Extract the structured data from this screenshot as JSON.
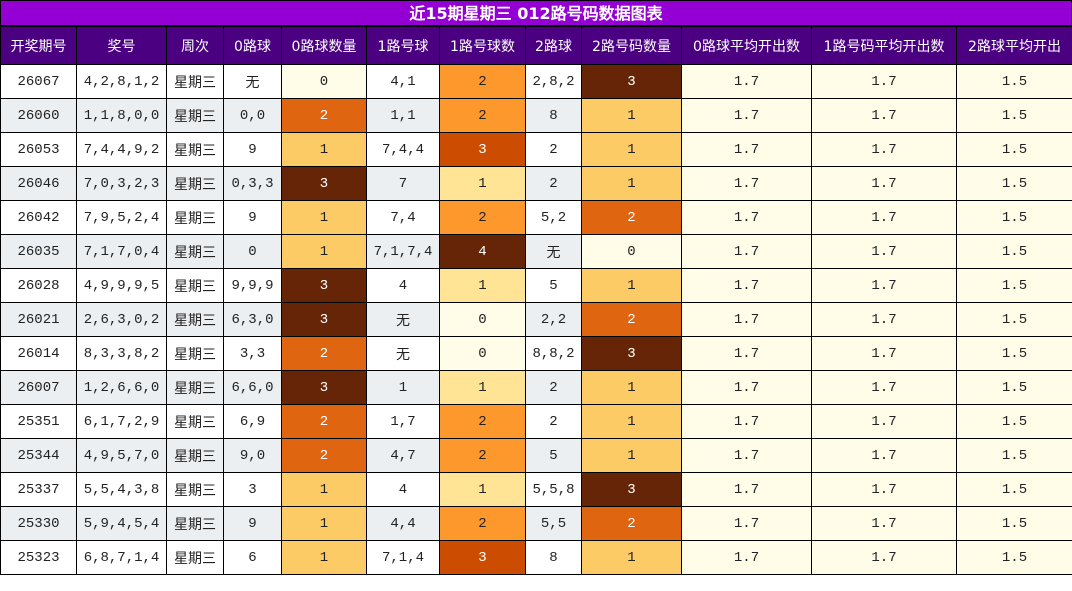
{
  "title": "近15期星期三 012路号码数据图表",
  "headers": [
    "开奖期号",
    "奖号",
    "周次",
    "0路球",
    "0路球数量",
    "1路号球",
    "1路号球数",
    "2路球",
    "2路号码数量",
    "0路球平均开出数",
    "1路号码平均开出数",
    "2路球平均开出"
  ],
  "colors": {
    "title_bg": "#9400d3",
    "header_bg": "#4b0082",
    "row_alt_bg": "#eceff2",
    "avg_bg": "#fffde8",
    "count_0": "#fffde8",
    "count_1": "#fdcb65",
    "count_2": "#e06510",
    "count_3": "#662506",
    "count_4": "#662506"
  },
  "rows": [
    {
      "issue": "26067",
      "numbers": "4,2,8,1,2",
      "weekday": "星期三",
      "r0": "无",
      "r0_count": "0",
      "r1": "4,1",
      "r1_count": "2",
      "r2": "2,8,2",
      "r2_count": "3",
      "avg0": "1.7",
      "avg1": "1.7",
      "avg2": "1.5"
    },
    {
      "issue": "26060",
      "numbers": "1,1,8,0,0",
      "weekday": "星期三",
      "r0": "0,0",
      "r0_count": "2",
      "r1": "1,1",
      "r1_count": "2",
      "r2": "8",
      "r2_count": "1",
      "avg0": "1.7",
      "avg1": "1.7",
      "avg2": "1.5"
    },
    {
      "issue": "26053",
      "numbers": "7,4,4,9,2",
      "weekday": "星期三",
      "r0": "9",
      "r0_count": "1",
      "r1": "7,4,4",
      "r1_count": "3",
      "r2": "2",
      "r2_count": "1",
      "avg0": "1.7",
      "avg1": "1.7",
      "avg2": "1.5"
    },
    {
      "issue": "26046",
      "numbers": "7,0,3,2,3",
      "weekday": "星期三",
      "r0": "0,3,3",
      "r0_count": "3",
      "r1": "7",
      "r1_count": "1",
      "r2": "2",
      "r2_count": "1",
      "avg0": "1.7",
      "avg1": "1.7",
      "avg2": "1.5"
    },
    {
      "issue": "26042",
      "numbers": "7,9,5,2,4",
      "weekday": "星期三",
      "r0": "9",
      "r0_count": "1",
      "r1": "7,4",
      "r1_count": "2",
      "r2": "5,2",
      "r2_count": "2",
      "avg0": "1.7",
      "avg1": "1.7",
      "avg2": "1.5"
    },
    {
      "issue": "26035",
      "numbers": "7,1,7,0,4",
      "weekday": "星期三",
      "r0": "0",
      "r0_count": "1",
      "r1": "7,1,7,4",
      "r1_count": "4",
      "r2": "无",
      "r2_count": "0",
      "avg0": "1.7",
      "avg1": "1.7",
      "avg2": "1.5"
    },
    {
      "issue": "26028",
      "numbers": "4,9,9,9,5",
      "weekday": "星期三",
      "r0": "9,9,9",
      "r0_count": "3",
      "r1": "4",
      "r1_count": "1",
      "r2": "5",
      "r2_count": "1",
      "avg0": "1.7",
      "avg1": "1.7",
      "avg2": "1.5"
    },
    {
      "issue": "26021",
      "numbers": "2,6,3,0,2",
      "weekday": "星期三",
      "r0": "6,3,0",
      "r0_count": "3",
      "r1": "无",
      "r1_count": "0",
      "r2": "2,2",
      "r2_count": "2",
      "avg0": "1.7",
      "avg1": "1.7",
      "avg2": "1.5"
    },
    {
      "issue": "26014",
      "numbers": "8,3,3,8,2",
      "weekday": "星期三",
      "r0": "3,3",
      "r0_count": "2",
      "r1": "无",
      "r1_count": "0",
      "r2": "8,8,2",
      "r2_count": "3",
      "avg0": "1.7",
      "avg1": "1.7",
      "avg2": "1.5"
    },
    {
      "issue": "26007",
      "numbers": "1,2,6,6,0",
      "weekday": "星期三",
      "r0": "6,6,0",
      "r0_count": "3",
      "r1": "1",
      "r1_count": "1",
      "r2": "2",
      "r2_count": "1",
      "avg0": "1.7",
      "avg1": "1.7",
      "avg2": "1.5"
    },
    {
      "issue": "25351",
      "numbers": "6,1,7,2,9",
      "weekday": "星期三",
      "r0": "6,9",
      "r0_count": "2",
      "r1": "1,7",
      "r1_count": "2",
      "r2": "2",
      "r2_count": "1",
      "avg0": "1.7",
      "avg1": "1.7",
      "avg2": "1.5"
    },
    {
      "issue": "25344",
      "numbers": "4,9,5,7,0",
      "weekday": "星期三",
      "r0": "9,0",
      "r0_count": "2",
      "r1": "4,7",
      "r1_count": "2",
      "r2": "5",
      "r2_count": "1",
      "avg0": "1.7",
      "avg1": "1.7",
      "avg2": "1.5"
    },
    {
      "issue": "25337",
      "numbers": "5,5,4,3,8",
      "weekday": "星期三",
      "r0": "3",
      "r0_count": "1",
      "r1": "4",
      "r1_count": "1",
      "r2": "5,5,8",
      "r2_count": "3",
      "avg0": "1.7",
      "avg1": "1.7",
      "avg2": "1.5"
    },
    {
      "issue": "25330",
      "numbers": "5,9,4,5,4",
      "weekday": "星期三",
      "r0": "9",
      "r0_count": "1",
      "r1": "4,4",
      "r1_count": "2",
      "r2": "5,5",
      "r2_count": "2",
      "avg0": "1.7",
      "avg1": "1.7",
      "avg2": "1.5"
    },
    {
      "issue": "25323",
      "numbers": "6,8,7,1,4",
      "weekday": "星期三",
      "r0": "6",
      "r0_count": "1",
      "r1": "7,1,4",
      "r1_count": "3",
      "r2": "8",
      "r2_count": "1",
      "avg0": "1.7",
      "avg1": "1.7",
      "avg2": "1.5"
    }
  ]
}
